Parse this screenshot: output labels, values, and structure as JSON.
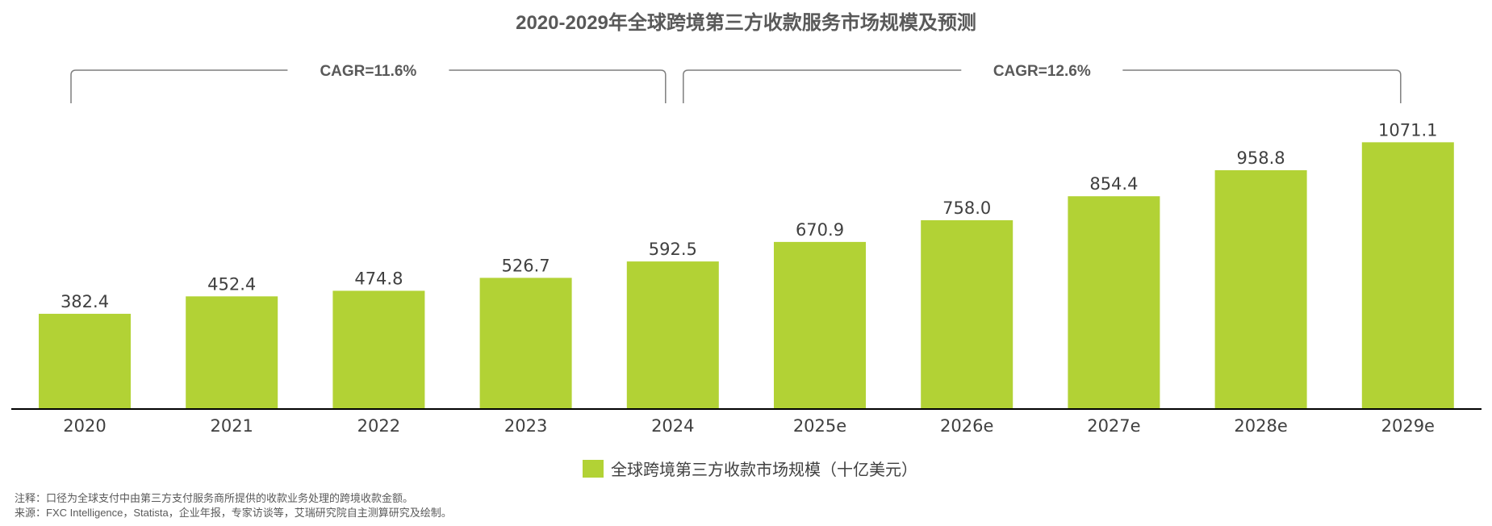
{
  "chart_data": {
    "type": "bar",
    "title": "2020-2029年全球跨境第三方收款服务市场规模及预测",
    "categories": [
      "2020",
      "2021",
      "2022",
      "2023",
      "2024",
      "2025e",
      "2026e",
      "2027e",
      "2028e",
      "2029e"
    ],
    "series": [
      {
        "name": "全球跨境第三方收款市场规模（十亿美元）",
        "values": [
          382.4,
          452.4,
          474.8,
          526.7,
          592.5,
          670.9,
          758.0,
          854.4,
          958.8,
          1071.1
        ],
        "labels": [
          "382.4",
          "452.4",
          "474.8",
          "526.7",
          "592.5",
          "670.9",
          "758.0",
          "854.4",
          "958.8",
          "1071.1"
        ]
      }
    ],
    "ylim": [
      0,
      1200
    ],
    "grid": false,
    "legend_position": "bottom",
    "annotations": [
      {
        "text": "CAGR=11.6%",
        "from": "2020",
        "to": "2024"
      },
      {
        "text": "CAGR=12.6%",
        "from": "2024",
        "to": "2029e"
      }
    ]
  },
  "colors": {
    "bar": "#b2d235",
    "axis": "#000000",
    "text": "#404040",
    "bracket": "#7f7f7f"
  },
  "footnotes": {
    "note": "注释：口径为全球支付中由第三方支付服务商所提供的收款业务处理的跨境收款金额。",
    "source": "来源：FXC Intelligence，Statista，企业年报，专家访谈等，艾瑞研究院自主测算研究及绘制。"
  }
}
